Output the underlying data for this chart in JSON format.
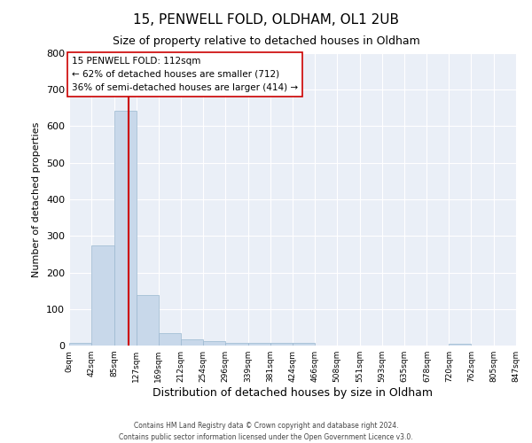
{
  "title": "15, PENWELL FOLD, OLDHAM, OL1 2UB",
  "subtitle": "Size of property relative to detached houses in Oldham",
  "xlabel": "Distribution of detached houses by size in Oldham",
  "ylabel": "Number of detached properties",
  "bin_edges": [
    0,
    42,
    85,
    127,
    169,
    212,
    254,
    296,
    339,
    381,
    424,
    466,
    508,
    551,
    593,
    635,
    678,
    720,
    762,
    805,
    847
  ],
  "bin_labels": [
    "0sqm",
    "42sqm",
    "85sqm",
    "127sqm",
    "169sqm",
    "212sqm",
    "254sqm",
    "296sqm",
    "339sqm",
    "381sqm",
    "424sqm",
    "466sqm",
    "508sqm",
    "551sqm",
    "593sqm",
    "635sqm",
    "678sqm",
    "720sqm",
    "762sqm",
    "805sqm",
    "847sqm"
  ],
  "counts": [
    8,
    275,
    643,
    138,
    35,
    18,
    12,
    8,
    7,
    8,
    7,
    0,
    0,
    0,
    0,
    0,
    0,
    6,
    0,
    0
  ],
  "bar_color": "#c8d8ea",
  "bar_edge_color": "#9ab8d0",
  "property_line_x": 112,
  "property_line_color": "#cc0000",
  "annotation_title": "15 PENWELL FOLD: 112sqm",
  "annotation_line1": "← 62% of detached houses are smaller (712)",
  "annotation_line2": "36% of semi-detached houses are larger (414) →",
  "annotation_box_color": "#ffffff",
  "annotation_box_edge_color": "#cc0000",
  "ylim": [
    0,
    800
  ],
  "yticks": [
    0,
    100,
    200,
    300,
    400,
    500,
    600,
    700,
    800
  ],
  "bg_color": "#eaeff7",
  "footer1": "Contains HM Land Registry data © Crown copyright and database right 2024.",
  "footer2": "Contains public sector information licensed under the Open Government Licence v3.0."
}
